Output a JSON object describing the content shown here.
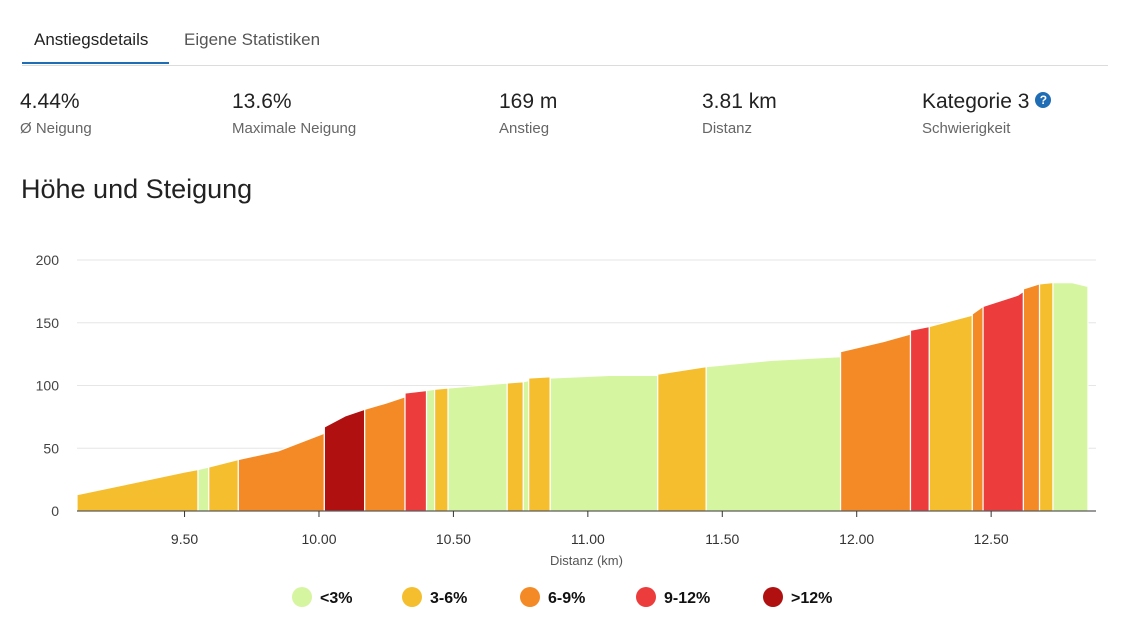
{
  "tabs": [
    {
      "label": "Anstiegsdetails",
      "active": true
    },
    {
      "label": "Eigene Statistiken",
      "active": false
    }
  ],
  "stats": [
    {
      "value": "4.44%",
      "label": "Ø Neigung"
    },
    {
      "value": "13.6%",
      "label": "Maximale Neigung"
    },
    {
      "value": "169 m",
      "label": "Anstieg"
    },
    {
      "value": "3.81 km",
      "label": "Distanz"
    },
    {
      "value": "Kategorie 3",
      "label": "Schwierigkeit",
      "help_icon": "question-circle-icon"
    }
  ],
  "section_title": "Höhe und Steigung",
  "chart_data": {
    "type": "area",
    "xlabel": "Distanz (km)",
    "ylabel": "",
    "xlim": [
      9.1,
      12.89
    ],
    "ylim": [
      0,
      200
    ],
    "x_ticks": [
      "9.50",
      "10.00",
      "10.50",
      "11.00",
      "11.50",
      "12.00",
      "12.50"
    ],
    "x_tick_values": [
      9.5,
      10.0,
      10.5,
      11.0,
      11.5,
      12.0,
      12.5
    ],
    "y_ticks": [
      "0",
      "50",
      "100",
      "150",
      "200"
    ],
    "y_tick_values": [
      0,
      50,
      100,
      150,
      200
    ],
    "grid": true,
    "legend_position": "bottom",
    "gradient_classes": [
      {
        "label": "<3%",
        "color": "#d6f5a0"
      },
      {
        "label": "3-6%",
        "color": "#f5be2e"
      },
      {
        "label": "6-9%",
        "color": "#f48a25"
      },
      {
        "label": "9-12%",
        "color": "#ec3c3c"
      },
      {
        "label": ">12%",
        "color": "#b01010"
      }
    ],
    "segments": [
      {
        "x": [
          9.1,
          9.3,
          9.5,
          9.55
        ],
        "y": [
          13,
          22,
          31,
          33
        ],
        "class": "3-6%"
      },
      {
        "x": [
          9.55,
          9.59
        ],
        "y": [
          33,
          35
        ],
        "class": "<3%"
      },
      {
        "x": [
          9.59,
          9.7
        ],
        "y": [
          35,
          41
        ],
        "class": "3-6%"
      },
      {
        "x": [
          9.7,
          9.85,
          10.02
        ],
        "y": [
          41,
          48,
          62
        ],
        "class": "6-9%"
      },
      {
        "x": [
          10.02,
          10.1,
          10.17
        ],
        "y": [
          67,
          76,
          81
        ],
        "class": ">12%"
      },
      {
        "x": [
          10.17,
          10.25,
          10.32
        ],
        "y": [
          81,
          86,
          91
        ],
        "class": "6-9%"
      },
      {
        "x": [
          10.32,
          10.4
        ],
        "y": [
          94,
          96
        ],
        "class": "9-12%"
      },
      {
        "x": [
          10.4,
          10.43
        ],
        "y": [
          96,
          97
        ],
        "class": "<3%"
      },
      {
        "x": [
          10.43,
          10.48
        ],
        "y": [
          97,
          98
        ],
        "class": "3-6%"
      },
      {
        "x": [
          10.48,
          10.7
        ],
        "y": [
          98,
          102
        ],
        "class": "<3%"
      },
      {
        "x": [
          10.7,
          10.76
        ],
        "y": [
          102,
          103
        ],
        "class": "3-6%"
      },
      {
        "x": [
          10.76,
          10.78
        ],
        "y": [
          103,
          104
        ],
        "class": "<3%"
      },
      {
        "x": [
          10.78,
          10.86
        ],
        "y": [
          106,
          107
        ],
        "class": "3-6%"
      },
      {
        "x": [
          10.86,
          11.08,
          11.26
        ],
        "y": [
          106,
          108,
          108
        ],
        "class": "<3%"
      },
      {
        "x": [
          11.26,
          11.44
        ],
        "y": [
          109,
          115
        ],
        "class": "3-6%"
      },
      {
        "x": [
          11.44,
          11.68,
          11.94
        ],
        "y": [
          115,
          120,
          123
        ],
        "class": "<3%"
      },
      {
        "x": [
          11.94,
          12.1,
          12.2
        ],
        "y": [
          127,
          135,
          141
        ],
        "class": "6-9%"
      },
      {
        "x": [
          12.2,
          12.27
        ],
        "y": [
          144,
          147
        ],
        "class": "9-12%"
      },
      {
        "x": [
          12.27,
          12.43
        ],
        "y": [
          147,
          156
        ],
        "class": "3-6%"
      },
      {
        "x": [
          12.43,
          12.47
        ],
        "y": [
          157,
          163
        ],
        "class": "6-9%"
      },
      {
        "x": [
          12.47,
          12.6,
          12.62
        ],
        "y": [
          163,
          172,
          175
        ],
        "class": "9-12%"
      },
      {
        "x": [
          12.62,
          12.68
        ],
        "y": [
          177,
          181
        ],
        "class": "6-9%"
      },
      {
        "x": [
          12.68,
          12.73
        ],
        "y": [
          181,
          182
        ],
        "class": "3-6%"
      },
      {
        "x": [
          12.73,
          12.8,
          12.86
        ],
        "y": [
          182,
          182,
          179
        ],
        "class": "<3%"
      }
    ]
  },
  "legend": [
    {
      "label": "<3%",
      "color": "#d6f5a0"
    },
    {
      "label": "3-6%",
      "color": "#f5be2e"
    },
    {
      "label": "6-9%",
      "color": "#f48a25"
    },
    {
      "label": "9-12%",
      "color": "#ec3c3c"
    },
    {
      "label": ">12%",
      "color": "#b01010"
    }
  ]
}
